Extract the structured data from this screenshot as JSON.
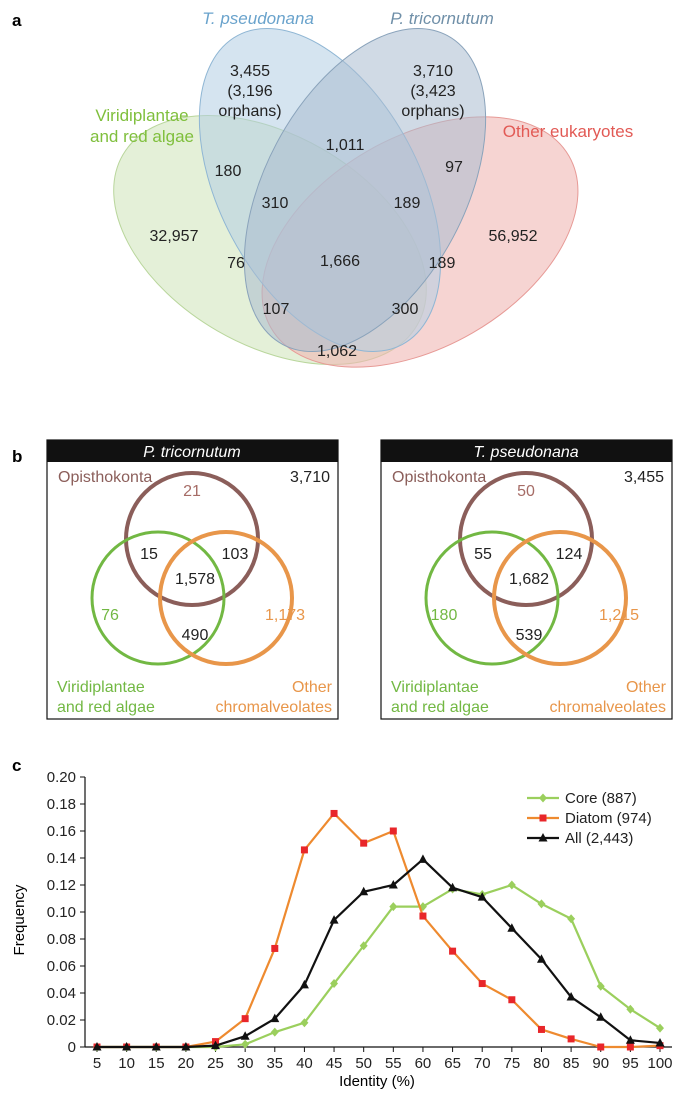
{
  "panel_a": {
    "letter": "a",
    "sets": [
      {
        "name": "T. pseudonana",
        "italic": true,
        "color": "#6aa3cc"
      },
      {
        "name": "P. tricornutum",
        "italic": true,
        "color": "#6f8fa8"
      },
      {
        "name_lines": [
          "Viridiplantae",
          "and red algae"
        ],
        "color": "#7fbf3c"
      },
      {
        "name": "Other eukaryotes",
        "color": "#e25a55"
      }
    ],
    "regions": [
      {
        "lines": [
          "3,455",
          "(3,196",
          "orphans)"
        ]
      },
      {
        "lines": [
          "3,710",
          "(3,423",
          "orphans)"
        ]
      },
      {
        "lines": [
          "1,011"
        ]
      },
      {
        "lines": [
          "180"
        ]
      },
      {
        "lines": [
          "97"
        ]
      },
      {
        "lines": [
          "310"
        ]
      },
      {
        "lines": [
          "189"
        ]
      },
      {
        "lines": [
          "32,957"
        ]
      },
      {
        "lines": [
          "56,952"
        ]
      },
      {
        "lines": [
          "76"
        ]
      },
      {
        "lines": [
          "1,666"
        ]
      },
      {
        "lines": [
          "189"
        ]
      },
      {
        "lines": [
          "107"
        ]
      },
      {
        "lines": [
          "300"
        ]
      },
      {
        "lines": [
          "1,062"
        ]
      }
    ],
    "colors": {
      "blue": "#b3cee3",
      "steel": "#a9bccf",
      "green": "#d6e8c3",
      "red": "#f0b7b4"
    }
  },
  "panel_b": {
    "letter": "b",
    "boxes": [
      {
        "title": "P. tricornutum",
        "total": "3,710",
        "opisthokonta_label": "Opisthokonta",
        "viridi_label": [
          "Viridiplantae",
          "and red algae"
        ],
        "other_label": [
          "Other",
          "chromalveolates"
        ],
        "opisthokonta_only": "21",
        "viridi_only": "76",
        "other_only": "1,173",
        "op_vi": "15",
        "op_ot": "103",
        "all": "1,578",
        "vi_ot": "490"
      },
      {
        "title": "T. pseudonana",
        "total": "3,455",
        "opisthokonta_label": "Opisthokonta",
        "viridi_label": [
          "Viridiplantae",
          "and red algae"
        ],
        "other_label": [
          "Other",
          "chromalveolates"
        ],
        "opisthokonta_only": "50",
        "viridi_only": "180",
        "other_only": "1,215",
        "op_vi": "55",
        "op_ot": "124",
        "all": "1,682",
        "vi_ot": "539"
      }
    ],
    "colors": {
      "opisthokonta": "#8b5e5a",
      "viridi": "#72b843",
      "other": "#e8964a"
    }
  },
  "chart_data": {
    "letter": "c",
    "type": "line",
    "xlabel": "Identity (%)",
    "ylabel": "Frequency",
    "x": [
      5,
      10,
      15,
      20,
      25,
      30,
      35,
      40,
      45,
      50,
      55,
      60,
      65,
      70,
      75,
      80,
      85,
      90,
      95,
      100
    ],
    "ylim": [
      0,
      0.2
    ],
    "yticks": [
      "0",
      "0.02",
      "0.04",
      "0.06",
      "0.08",
      "0.10",
      "0.12",
      "0.14",
      "0.16",
      "0.18",
      "0.20"
    ],
    "xticks": [
      "5",
      "10",
      "15",
      "20",
      "25",
      "30",
      "35",
      "40",
      "45",
      "50",
      "55",
      "60",
      "65",
      "70",
      "75",
      "80",
      "85",
      "90",
      "95",
      "100"
    ],
    "legend_position": "top-right",
    "series": [
      {
        "name": "Core (887)",
        "color": "#9bcf5d",
        "marker": "diamond",
        "values": [
          0,
          0,
          0,
          0,
          0,
          0.002,
          0.011,
          0.018,
          0.047,
          0.075,
          0.104,
          0.104,
          0.117,
          0.113,
          0.12,
          0.106,
          0.095,
          0.045,
          0.028,
          0.014
        ]
      },
      {
        "name": "Diatom (974)",
        "color": "#ee8a2f",
        "marker_color": "#e8262a",
        "marker": "square",
        "values": [
          0,
          0,
          0,
          0,
          0.004,
          0.021,
          0.073,
          0.146,
          0.173,
          0.151,
          0.16,
          0.097,
          0.071,
          0.047,
          0.035,
          0.013,
          0.006,
          0,
          0,
          0.001
        ]
      },
      {
        "name": "All (2,443)",
        "color": "#111111",
        "marker": "triangle",
        "values": [
          0,
          0,
          0,
          0,
          0.001,
          0.008,
          0.021,
          0.046,
          0.094,
          0.115,
          0.12,
          0.139,
          0.118,
          0.111,
          0.088,
          0.065,
          0.037,
          0.022,
          0.005,
          0.003
        ]
      }
    ]
  }
}
